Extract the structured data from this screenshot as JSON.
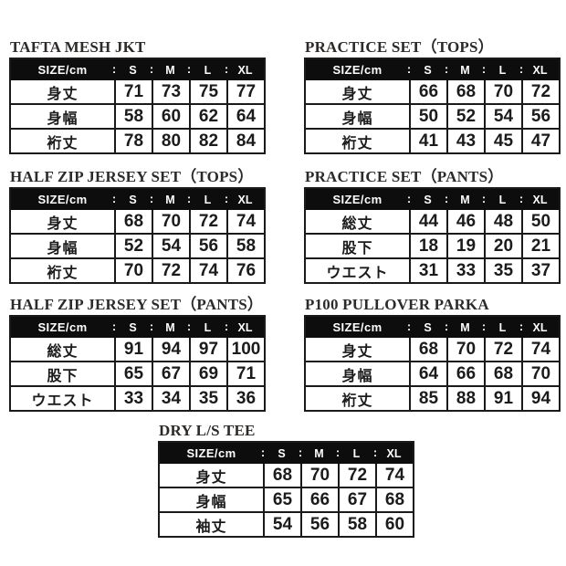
{
  "page": {
    "background": "#ffffff"
  },
  "colors": {
    "header_bg": "#0d0d0d",
    "header_text": "#ffffff",
    "body_text": "#1b1b1b",
    "grid_line": "#1a1a1a",
    "title_text": "#2d2a28"
  },
  "header": {
    "size_label": "SIZE/cm",
    "separator": ":",
    "columns": [
      "S",
      "M",
      "L",
      "XL"
    ]
  },
  "tables": [
    {
      "title": "TAFTA MESH JKT",
      "rows": [
        {
          "label": "身丈",
          "values": [
            "71",
            "73",
            "75",
            "77"
          ]
        },
        {
          "label": "身幅",
          "values": [
            "58",
            "60",
            "62",
            "64"
          ]
        },
        {
          "label": "裄丈",
          "values": [
            "78",
            "80",
            "82",
            "84"
          ]
        }
      ]
    },
    {
      "title": "PRACTICE SET（TOPS）",
      "rows": [
        {
          "label": "身丈",
          "values": [
            "66",
            "68",
            "70",
            "72"
          ]
        },
        {
          "label": "身幅",
          "values": [
            "50",
            "52",
            "54",
            "56"
          ]
        },
        {
          "label": "裄丈",
          "values": [
            "41",
            "43",
            "45",
            "47"
          ]
        }
      ]
    },
    {
      "title": "HALF ZIP JERSEY SET（TOPS）",
      "rows": [
        {
          "label": "身丈",
          "values": [
            "68",
            "70",
            "72",
            "74"
          ]
        },
        {
          "label": "身幅",
          "values": [
            "52",
            "54",
            "56",
            "58"
          ]
        },
        {
          "label": "裄丈",
          "values": [
            "70",
            "72",
            "74",
            "76"
          ]
        }
      ]
    },
    {
      "title": "PRACTICE SET（PANTS）",
      "rows": [
        {
          "label": "総丈",
          "values": [
            "44",
            "46",
            "48",
            "50"
          ]
        },
        {
          "label": "股下",
          "values": [
            "18",
            "19",
            "20",
            "21"
          ]
        },
        {
          "label": "ウエスト",
          "values": [
            "31",
            "33",
            "35",
            "37"
          ]
        }
      ]
    },
    {
      "title": "HALF ZIP JERSEY SET（PANTS）",
      "rows": [
        {
          "label": "総丈",
          "values": [
            "91",
            "94",
            "97",
            "100"
          ]
        },
        {
          "label": "股下",
          "values": [
            "65",
            "67",
            "69",
            "71"
          ]
        },
        {
          "label": "ウエスト",
          "values": [
            "33",
            "34",
            "35",
            "36"
          ]
        }
      ]
    },
    {
      "title": "P100 PULLOVER PARKA",
      "rows": [
        {
          "label": "身丈",
          "values": [
            "68",
            "70",
            "72",
            "74"
          ]
        },
        {
          "label": "身幅",
          "values": [
            "64",
            "66",
            "68",
            "70"
          ]
        },
        {
          "label": "裄丈",
          "values": [
            "85",
            "88",
            "91",
            "94"
          ]
        }
      ]
    },
    {
      "title": "DRY L/S TEE",
      "rows": [
        {
          "label": "身丈",
          "values": [
            "68",
            "70",
            "72",
            "74"
          ]
        },
        {
          "label": "身幅",
          "values": [
            "65",
            "66",
            "67",
            "68"
          ]
        },
        {
          "label": "袖丈",
          "values": [
            "54",
            "56",
            "58",
            "60"
          ]
        }
      ]
    }
  ]
}
